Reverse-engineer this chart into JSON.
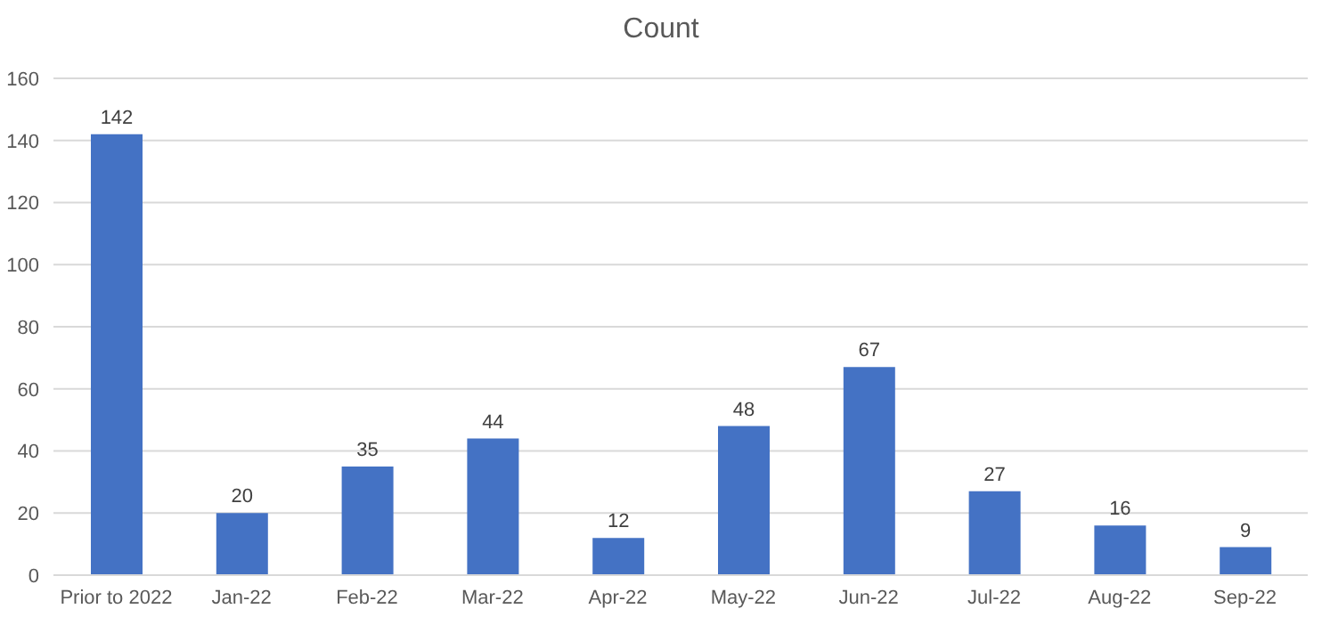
{
  "chart_data": {
    "type": "bar",
    "title": "Count",
    "categories": [
      "Prior to 2022",
      "Jan-22",
      "Feb-22",
      "Mar-22",
      "Apr-22",
      "May-22",
      "Jun-22",
      "Jul-22",
      "Aug-22",
      "Sep-22"
    ],
    "values": [
      142,
      20,
      35,
      44,
      12,
      48,
      67,
      27,
      16,
      9
    ],
    "color": "#4472c4",
    "ylim": [
      0,
      160
    ],
    "yticks": [
      0,
      20,
      40,
      60,
      80,
      100,
      120,
      140,
      160
    ],
    "grid": "y",
    "data_labels": true
  }
}
